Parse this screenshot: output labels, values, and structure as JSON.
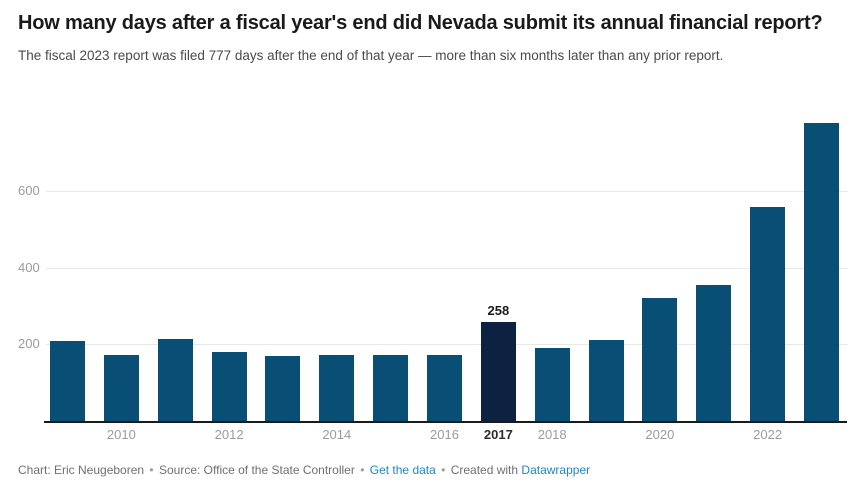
{
  "colors": {
    "bar": "#094e74",
    "bar_highlight": "#0d2240",
    "gridline": "#e8e8e8",
    "axis_line": "#1a1a1a",
    "tick_label": "#9b9b9b",
    "link": "#1d87c8"
  },
  "chart_data": {
    "type": "bar",
    "title": "How many days after a fiscal year's end did Nevada submit its annual financial report?",
    "subtitle": "The fiscal 2023 report was filed 777 days after the end of that year — more than six months later than any prior report.",
    "categories": [
      "2009",
      "2010",
      "2011",
      "2012",
      "2013",
      "2014",
      "2015",
      "2016",
      "2017",
      "2018",
      "2019",
      "2020",
      "2021",
      "2022",
      "2023"
    ],
    "values": [
      208,
      172,
      214,
      180,
      169,
      171,
      171,
      171,
      258,
      190,
      212,
      322,
      356,
      559,
      777
    ],
    "highlight_index": 8,
    "highlight_category": "2017",
    "value_labels": [
      {
        "index": 8,
        "label": "258"
      }
    ],
    "x_ticks": [
      {
        "index": 1,
        "label": "2010",
        "bold": false
      },
      {
        "index": 3,
        "label": "2012",
        "bold": false
      },
      {
        "index": 5,
        "label": "2014",
        "bold": false
      },
      {
        "index": 7,
        "label": "2016",
        "bold": false
      },
      {
        "index": 8,
        "label": "2017",
        "bold": true
      },
      {
        "index": 9,
        "label": "2018",
        "bold": false
      },
      {
        "index": 11,
        "label": "2020",
        "bold": false
      },
      {
        "index": 13,
        "label": "2022",
        "bold": false
      }
    ],
    "gridlines": [
      200,
      400,
      600
    ],
    "ylim": [
      0,
      800
    ],
    "xlabel": "",
    "ylabel": "",
    "legend_position": "none",
    "grid": "horizontal"
  },
  "footer": {
    "credit": "Chart: Eric Neugeboren",
    "sep": "•",
    "source": "Source: Office of the State Controller",
    "get_data_label": "Get the data",
    "created_with": "Created with",
    "brand_link_label": "Datawrapper"
  }
}
